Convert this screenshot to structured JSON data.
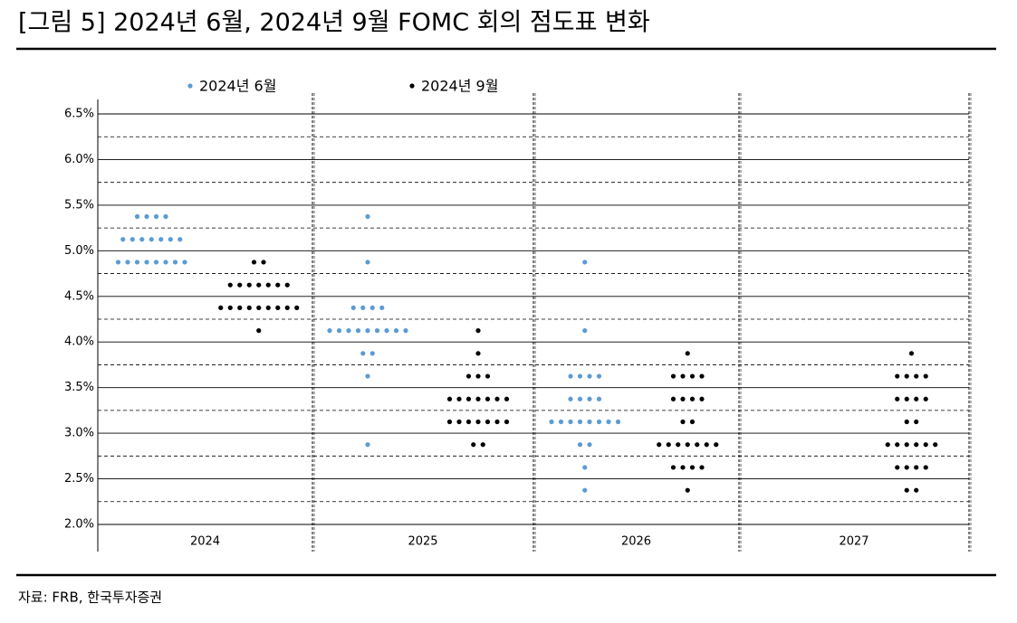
{
  "chart_data": {
    "type": "dot",
    "title": "[그림 5] 2024년 6월, 2024년 9월 FOMC 회의 점도표 변화",
    "source": "자료: FRB, 한국투자증권",
    "categories": [
      "2024",
      "2025",
      "2026",
      "2027"
    ],
    "ylim": [
      2.0,
      6.5
    ],
    "yticks": [
      {
        "value": 2.0,
        "label": "2.0%"
      },
      {
        "value": 2.5,
        "label": "2.5%"
      },
      {
        "value": 3.0,
        "label": "3.0%"
      },
      {
        "value": 3.5,
        "label": "3.5%"
      },
      {
        "value": 4.0,
        "label": "4.0%"
      },
      {
        "value": 4.5,
        "label": "4.5%"
      },
      {
        "value": 5.0,
        "label": "5.0%"
      },
      {
        "value": 5.5,
        "label": "5.5%"
      },
      {
        "value": 6.0,
        "label": "6.0%"
      },
      {
        "value": 6.5,
        "label": "6.5%"
      }
    ],
    "yminor_ticks": [
      2.25,
      2.75,
      3.25,
      3.75,
      4.25,
      4.75,
      5.25,
      5.75,
      6.25
    ],
    "grid": true,
    "series": [
      {
        "name": "2024년 6월",
        "color": "#5b9bd5",
        "values": [
          [
            {
              "rate": 5.375,
              "count": 4
            },
            {
              "rate": 5.125,
              "count": 7
            },
            {
              "rate": 4.875,
              "count": 8
            }
          ],
          [
            {
              "rate": 5.375,
              "count": 1
            },
            {
              "rate": 4.875,
              "count": 1
            },
            {
              "rate": 4.375,
              "count": 4
            },
            {
              "rate": 4.125,
              "count": 9
            },
            {
              "rate": 3.875,
              "count": 2
            },
            {
              "rate": 3.625,
              "count": 1
            },
            {
              "rate": 2.875,
              "count": 1
            }
          ],
          [
            {
              "rate": 4.875,
              "count": 1
            },
            {
              "rate": 4.125,
              "count": 1
            },
            {
              "rate": 3.625,
              "count": 4
            },
            {
              "rate": 3.375,
              "count": 4
            },
            {
              "rate": 3.125,
              "count": 8
            },
            {
              "rate": 2.875,
              "count": 2
            },
            {
              "rate": 2.625,
              "count": 1
            },
            {
              "rate": 2.375,
              "count": 1
            }
          ],
          []
        ]
      },
      {
        "name": "2024년 9월",
        "color": "#000000",
        "values": [
          [
            {
              "rate": 4.875,
              "count": 2
            },
            {
              "rate": 4.625,
              "count": 7
            },
            {
              "rate": 4.375,
              "count": 9
            },
            {
              "rate": 4.125,
              "count": 1
            }
          ],
          [
            {
              "rate": 4.125,
              "count": 1
            },
            {
              "rate": 3.875,
              "count": 1
            },
            {
              "rate": 3.625,
              "count": 3
            },
            {
              "rate": 3.375,
              "count": 7
            },
            {
              "rate": 3.125,
              "count": 7
            },
            {
              "rate": 2.875,
              "count": 2
            }
          ],
          [
            {
              "rate": 3.875,
              "count": 1
            },
            {
              "rate": 3.625,
              "count": 4
            },
            {
              "rate": 3.375,
              "count": 4
            },
            {
              "rate": 3.125,
              "count": 2
            },
            {
              "rate": 2.875,
              "count": 7
            },
            {
              "rate": 2.625,
              "count": 4
            },
            {
              "rate": 2.375,
              "count": 1
            }
          ],
          [
            {
              "rate": 3.875,
              "count": 1
            },
            {
              "rate": 3.625,
              "count": 4
            },
            {
              "rate": 3.375,
              "count": 4
            },
            {
              "rate": 3.125,
              "count": 2
            },
            {
              "rate": 2.875,
              "count": 6
            },
            {
              "rate": 2.625,
              "count": 4
            },
            {
              "rate": 2.375,
              "count": 2
            }
          ]
        ]
      }
    ]
  }
}
